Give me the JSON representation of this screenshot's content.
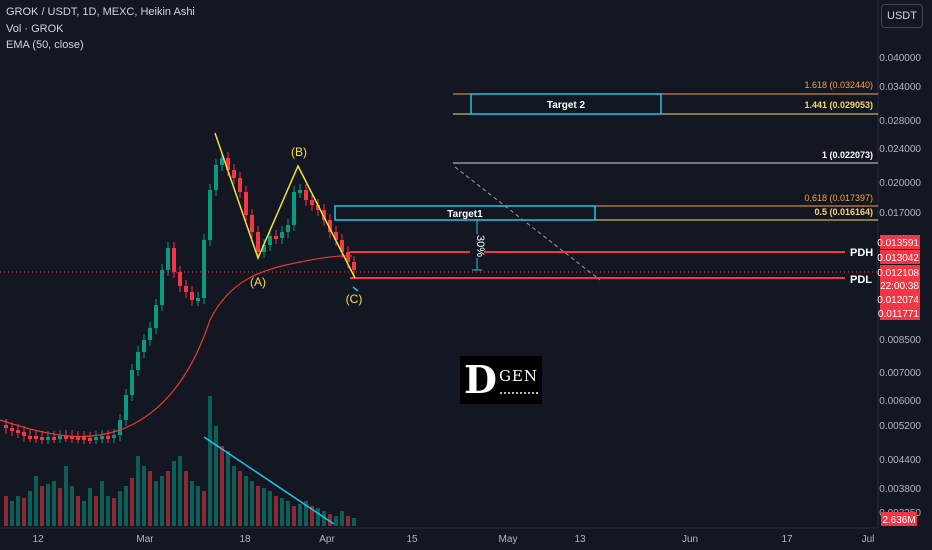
{
  "header": {
    "title": "GROK / USDT, 1D, MEXC, Heikin Ashi",
    "vol": "Vol · GROK",
    "ema": "EMA (50, close)"
  },
  "currency_button": "USDT",
  "logo": {
    "big": "D",
    "small": "GEN"
  },
  "chart_data": {
    "type": "candlestick",
    "y_axis_ticks": [
      "0.040000",
      "0.034000",
      "0.028000",
      "0.024000",
      "0.020000",
      "0.017000",
      "0.013591",
      "0.013042",
      "0.012108",
      "0.012074",
      "0.011771",
      "0.008500",
      "0.007000",
      "0.006000",
      "0.005200",
      "0.004400",
      "0.003800",
      "0.003350"
    ],
    "x_axis_ticks": [
      "12",
      "Mar",
      "18",
      "Apr",
      "15",
      "May",
      "13",
      "Jun",
      "17",
      "Jul"
    ],
    "price_labels": [
      {
        "value": "0.013591",
        "color": "#f23645"
      },
      {
        "value": "0.013042",
        "color": "#f23645"
      },
      {
        "value": "0.012108",
        "color": "#f23645"
      },
      {
        "value": "22:00:38",
        "color": "#f23645"
      },
      {
        "value": "0.012074",
        "color": "#f23645"
      },
      {
        "value": "0.011771",
        "color": "#f23645"
      }
    ],
    "volume_label": "2.636M",
    "fib_levels": [
      {
        "label": "1.618 (0.032440)",
        "color": "#f7a14c",
        "y": 0.03244
      },
      {
        "label": "1.441 (0.029053)",
        "color": "#f5d76e",
        "y": 0.029053
      },
      {
        "label": "1 (0.022073)",
        "color": "#e0e0e0",
        "y": 0.022073
      },
      {
        "label": "0.618 (0.017397)",
        "color": "#f7a14c",
        "y": 0.017397
      },
      {
        "label": "0.5 (0.016164)",
        "color": "#f5d76e",
        "y": 0.016164
      }
    ],
    "targets": [
      {
        "label": "Target 2"
      },
      {
        "label": "Target1"
      }
    ],
    "levels": [
      {
        "label": "PDH",
        "y": 0.013591
      },
      {
        "label": "PDL",
        "y": 0.012074
      }
    ],
    "wave_labels": [
      "(A)",
      "(B)",
      "(C)"
    ],
    "measure_label": "30%",
    "colors": {
      "up": "#089981",
      "down": "#f23645",
      "ema": "#e53935",
      "trend": "#22c3e6",
      "wave": "#f0e040",
      "bg": "#131722"
    }
  }
}
